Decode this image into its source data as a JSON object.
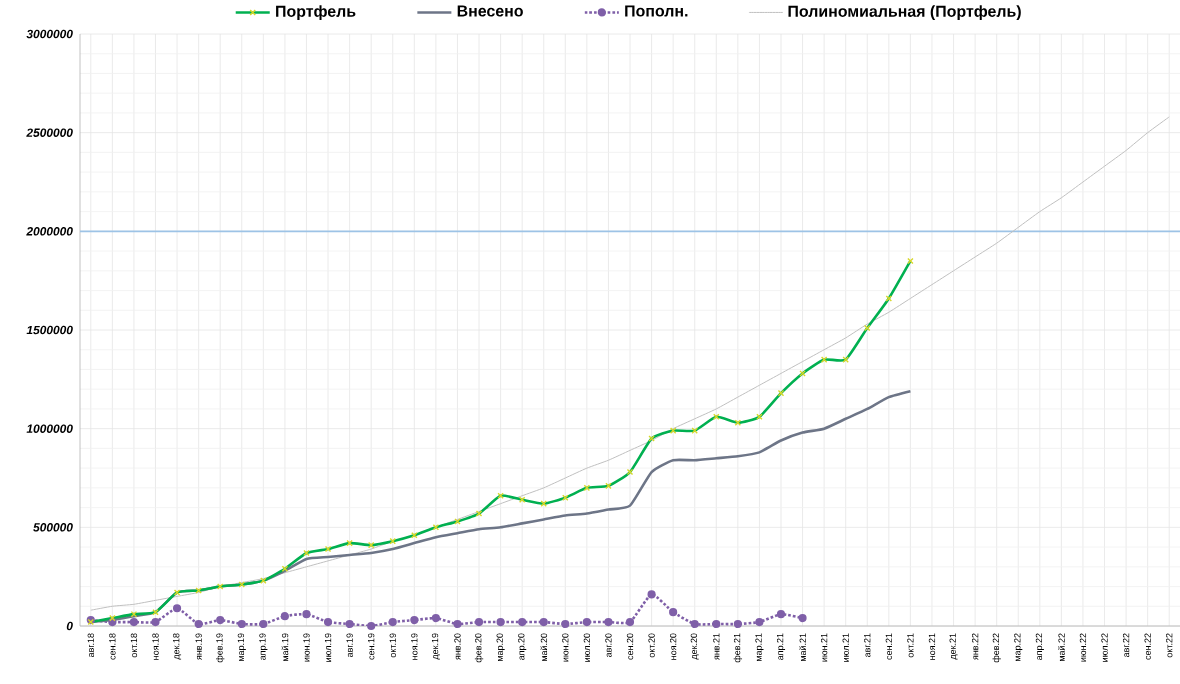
{
  "chart_data": {
    "type": "line",
    "categories": [
      "авг.18",
      "сен.18",
      "окт.18",
      "ноя.18",
      "дек.18",
      "янв.19",
      "фев.19",
      "мар.19",
      "апр.19",
      "май.19",
      "июн.19",
      "июл.19",
      "авг.19",
      "сен.19",
      "окт.19",
      "ноя.19",
      "дек.19",
      "янв.20",
      "фев.20",
      "мар.20",
      "апр.20",
      "май.20",
      "июн.20",
      "июл.20",
      "авг.20",
      "сен.20",
      "окт.20",
      "ноя.20",
      "дек.20",
      "янв.21",
      "фев.21",
      "мар.21",
      "апр.21",
      "май.21",
      "июн.21",
      "июл.21",
      "авг.21",
      "сен.21",
      "окт.21",
      "ноя.21",
      "дек.21",
      "янв.22",
      "фев.22",
      "мар.22",
      "апр.22",
      "май.22",
      "июн.22",
      "июл.22",
      "авг.22",
      "сен.22",
      "окт.22"
    ],
    "series": [
      {
        "name": "Портфель",
        "color": "#00b050",
        "marker": "cross",
        "values": [
          20000,
          40000,
          60000,
          70000,
          170000,
          180000,
          200000,
          210000,
          230000,
          290000,
          370000,
          390000,
          420000,
          410000,
          430000,
          460000,
          500000,
          530000,
          570000,
          660000,
          640000,
          620000,
          650000,
          700000,
          710000,
          780000,
          950000,
          990000,
          990000,
          1060000,
          1030000,
          1060000,
          1180000,
          1280000,
          1350000,
          1350000,
          1510000,
          1660000,
          1850000,
          null,
          null,
          null,
          null,
          null,
          null,
          null,
          null,
          null,
          null,
          null,
          null
        ]
      },
      {
        "name": "Внесено",
        "color": "#6d7587",
        "marker": "none",
        "values": [
          20000,
          30000,
          50000,
          70000,
          170000,
          180000,
          200000,
          210000,
          230000,
          280000,
          340000,
          350000,
          360000,
          370000,
          390000,
          420000,
          450000,
          470000,
          490000,
          500000,
          520000,
          540000,
          560000,
          570000,
          590000,
          610000,
          780000,
          840000,
          840000,
          850000,
          860000,
          880000,
          940000,
          980000,
          1000000,
          1050000,
          1100000,
          1160000,
          1190000,
          null,
          null,
          null,
          null,
          null,
          null,
          null,
          null,
          null,
          null,
          null,
          null
        ]
      },
      {
        "name": "Пополн.",
        "color": "#7f5fa8",
        "marker": "circle",
        "line_style": "dotted",
        "values": [
          30000,
          20000,
          20000,
          20000,
          90000,
          10000,
          30000,
          10000,
          10000,
          50000,
          60000,
          20000,
          10000,
          0,
          20000,
          30000,
          40000,
          10000,
          20000,
          20000,
          20000,
          20000,
          10000,
          20000,
          20000,
          20000,
          160000,
          70000,
          10000,
          10000,
          10000,
          20000,
          60000,
          40000,
          null,
          null,
          null,
          null,
          null,
          null,
          null,
          null,
          null,
          null,
          null,
          null,
          null,
          null,
          null,
          null,
          null
        ]
      },
      {
        "name": "Полиномиальная (Портфель)",
        "color": "#c0c0c0",
        "marker": "none",
        "values": [
          80000,
          100000,
          110000,
          130000,
          150000,
          170000,
          200000,
          220000,
          240000,
          270000,
          300000,
          330000,
          360000,
          390000,
          430000,
          460000,
          500000,
          540000,
          580000,
          620000,
          660000,
          700000,
          750000,
          800000,
          840000,
          890000,
          940000,
          1000000,
          1050000,
          1100000,
          1160000,
          1220000,
          1280000,
          1340000,
          1400000,
          1460000,
          1530000,
          1590000,
          1660000,
          1730000,
          1800000,
          1870000,
          1940000,
          2020000,
          2100000,
          2170000,
          2250000,
          2330000,
          2410000,
          2500000,
          2580000
        ]
      }
    ],
    "ylim": [
      0,
      3000000
    ],
    "yticks": [
      0,
      500000,
      1000000,
      1500000,
      2000000,
      2500000,
      3000000
    ],
    "ref_lines": [
      {
        "axis": "y",
        "value": 2000000,
        "color": "#9dc3e6"
      }
    ],
    "grid": true,
    "legend": "top"
  }
}
